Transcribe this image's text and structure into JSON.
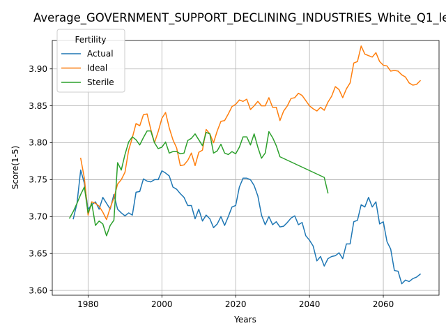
{
  "chart_data": {
    "type": "line",
    "title": "Average_GOVERNMENT_SUPPORT_DECLINING_INDUSTRIES_White_Q1_le",
    "xlabel": "Years",
    "ylabel": "Score(1-5)",
    "xlim": [
      1970.3,
      2075.1
    ],
    "ylim": [
      3.5935,
      3.9385
    ],
    "xticks": [
      1980,
      2000,
      2020,
      2040,
      2060
    ],
    "yticks": [
      3.6,
      3.65,
      3.7,
      3.75,
      3.8,
      3.85,
      3.9
    ],
    "ytick_labels": [
      "3.60",
      "3.65",
      "3.70",
      "3.75",
      "3.80",
      "3.85",
      "3.90"
    ],
    "grid": true,
    "legend": {
      "title": "Fertility",
      "position": "top-left"
    },
    "series": [
      {
        "name": "Actual",
        "color": "#1f77b4",
        "x": [
          1976,
          1977,
          1978,
          1979,
          1980,
          1981,
          1982,
          1983,
          1984,
          1985,
          1986,
          1987,
          1988,
          1989,
          1990,
          1991,
          1992,
          1993,
          1994,
          1995,
          1996,
          1997,
          1998,
          1999,
          2000,
          2001,
          2002,
          2003,
          2004,
          2005,
          2006,
          2007,
          2008,
          2009,
          2010,
          2011,
          2012,
          2013,
          2014,
          2015,
          2016,
          2017,
          2018,
          2019,
          2020,
          2021,
          2022,
          2023,
          2024,
          2025,
          2026,
          2027,
          2028,
          2029,
          2030,
          2031,
          2032,
          2033,
          2034,
          2035,
          2036,
          2037,
          2038,
          2039,
          2040,
          2041,
          2042,
          2043,
          2044,
          2045,
          2046,
          2047,
          2048,
          2049,
          2050,
          2051,
          2052,
          2053,
          2054,
          2055,
          2056,
          2057,
          2058,
          2059,
          2060,
          2061,
          2062,
          2063,
          2064,
          2065,
          2066,
          2067,
          2068,
          2069,
          2070
        ],
        "values": [
          3.697,
          3.718,
          3.763,
          3.745,
          3.71,
          3.716,
          3.72,
          3.71,
          3.726,
          3.718,
          3.71,
          3.73,
          3.71,
          3.705,
          3.701,
          3.705,
          3.702,
          3.733,
          3.734,
          3.751,
          3.748,
          3.747,
          3.75,
          3.75,
          3.762,
          3.759,
          3.755,
          3.74,
          3.737,
          3.731,
          3.726,
          3.715,
          3.715,
          3.697,
          3.71,
          3.694,
          3.702,
          3.697,
          3.685,
          3.69,
          3.7,
          3.688,
          3.7,
          3.713,
          3.715,
          3.74,
          3.752,
          3.752,
          3.75,
          3.742,
          3.728,
          3.702,
          3.689,
          3.7,
          3.689,
          3.693,
          3.686,
          3.687,
          3.692,
          3.698,
          3.701,
          3.689,
          3.692,
          3.674,
          3.668,
          3.66,
          3.64,
          3.646,
          3.633,
          3.643,
          3.646,
          3.647,
          3.651,
          3.643,
          3.663,
          3.663,
          3.693,
          3.695,
          3.716,
          3.713,
          3.726,
          3.713,
          3.72,
          3.69,
          3.693,
          3.666,
          3.656,
          3.627,
          3.626,
          3.609,
          3.614,
          3.612,
          3.616,
          3.618,
          3.622
        ]
      },
      {
        "name": "Ideal",
        "color": "#ff7f0e",
        "x": [
          1978,
          1979,
          1980,
          1981,
          1982,
          1983,
          1984,
          1985,
          1986,
          1987,
          1988,
          1989,
          1990,
          1991,
          1992,
          1993,
          1994,
          1995,
          1996,
          1997,
          1998,
          1999,
          2000,
          2001,
          2002,
          2003,
          2004,
          2005,
          2006,
          2007,
          2008,
          2009,
          2010,
          2011,
          2012,
          2013,
          2014,
          2015,
          2016,
          2017,
          2018,
          2019,
          2020,
          2021,
          2022,
          2023,
          2024,
          2025,
          2026,
          2027,
          2028,
          2029,
          2030,
          2031,
          2032,
          2033,
          2034,
          2035,
          2036,
          2037,
          2038,
          2039,
          2040,
          2041,
          2042,
          2043,
          2044,
          2045,
          2046,
          2047,
          2048,
          2049,
          2050,
          2051,
          2052,
          2053,
          2054,
          2055,
          2056,
          2057,
          2058,
          2059,
          2060,
          2061,
          2062,
          2063,
          2064,
          2065,
          2066,
          2067,
          2068,
          2069,
          2070
        ],
        "values": [
          3.779,
          3.752,
          3.702,
          3.72,
          3.718,
          3.714,
          3.706,
          3.696,
          3.712,
          3.725,
          3.744,
          3.75,
          3.76,
          3.79,
          3.807,
          3.826,
          3.823,
          3.838,
          3.839,
          3.818,
          3.8,
          3.815,
          3.833,
          3.841,
          3.82,
          3.804,
          3.793,
          3.769,
          3.77,
          3.776,
          3.786,
          3.769,
          3.787,
          3.79,
          3.818,
          3.812,
          3.8,
          3.816,
          3.829,
          3.83,
          3.839,
          3.849,
          3.852,
          3.858,
          3.856,
          3.859,
          3.845,
          3.85,
          3.856,
          3.85,
          3.85,
          3.861,
          3.848,
          3.848,
          3.83,
          3.843,
          3.85,
          3.86,
          3.861,
          3.867,
          3.864,
          3.857,
          3.85,
          3.846,
          3.843,
          3.848,
          3.844,
          3.855,
          3.863,
          3.876,
          3.872,
          3.861,
          3.873,
          3.881,
          3.908,
          3.91,
          3.931,
          3.92,
          3.918,
          3.916,
          3.922,
          3.91,
          3.905,
          3.904,
          3.897,
          3.898,
          3.897,
          3.892,
          3.889,
          3.881,
          3.878,
          3.879,
          3.884
        ]
      },
      {
        "name": "Sterile",
        "color": "#2ca02c",
        "x": [
          1975,
          1976,
          1977,
          1978,
          1979,
          1980,
          1981,
          1982,
          1983,
          1984,
          1985,
          1986,
          1987,
          1988,
          1989,
          1990,
          1991,
          1992,
          1993,
          1994,
          1995,
          1996,
          1997,
          1998,
          1999,
          2000,
          2001,
          2002,
          2003,
          2004,
          2005,
          2006,
          2007,
          2008,
          2009,
          2010,
          2011,
          2012,
          2013,
          2014,
          2015,
          2016,
          2017,
          2018,
          2019,
          2020,
          2021,
          2022,
          2023,
          2024,
          2025,
          2026,
          2027,
          2028,
          2029,
          2030,
          2031,
          2032,
          2044,
          2045
        ],
        "values": [
          3.698,
          3.707,
          3.718,
          3.73,
          3.74,
          3.705,
          3.718,
          3.688,
          3.694,
          3.69,
          3.674,
          3.688,
          3.695,
          3.773,
          3.763,
          3.784,
          3.801,
          3.808,
          3.804,
          3.797,
          3.807,
          3.816,
          3.816,
          3.8,
          3.792,
          3.794,
          3.801,
          3.786,
          3.788,
          3.788,
          3.785,
          3.786,
          3.803,
          3.806,
          3.812,
          3.804,
          3.796,
          3.814,
          3.812,
          3.786,
          3.789,
          3.798,
          3.786,
          3.784,
          3.788,
          3.785,
          3.794,
          3.808,
          3.808,
          3.797,
          3.812,
          3.794,
          3.779,
          3.786,
          3.815,
          3.807,
          3.796,
          3.781,
          3.753,
          3.732
        ]
      }
    ]
  }
}
